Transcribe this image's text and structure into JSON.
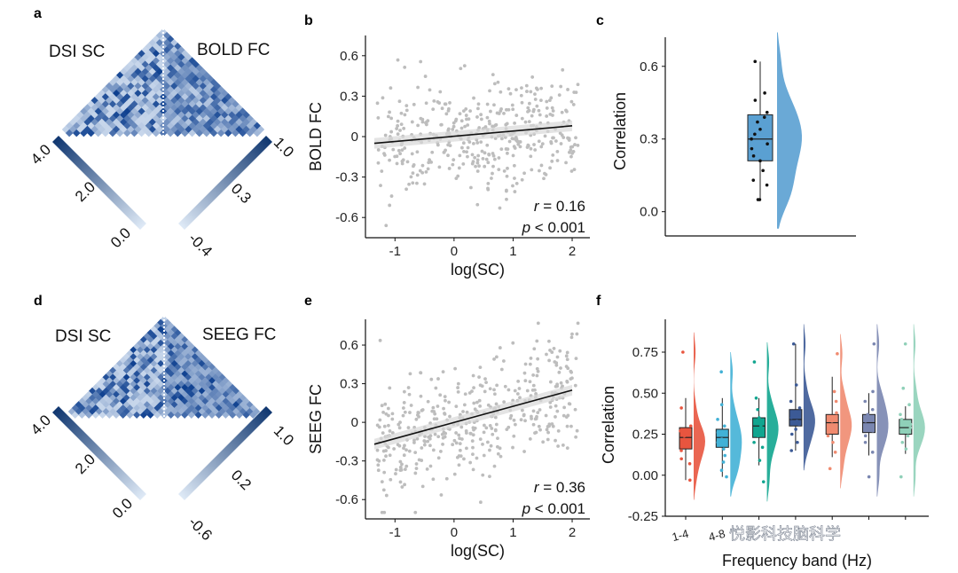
{
  "panels": {
    "a": {
      "label": "a",
      "left_title": "DSI SC",
      "right_title": "BOLD FC",
      "left_cbar": [
        "4.0",
        "2.0",
        "0.0"
      ],
      "right_cbar": [
        "1.0",
        "0.3",
        "-0.4"
      ]
    },
    "b": {
      "label": "b"
    },
    "c": {
      "label": "c"
    },
    "d": {
      "label": "d",
      "left_title": "DSI SC",
      "right_title": "SEEG FC",
      "left_cbar": [
        "4.0",
        "2.0",
        "0.0"
      ],
      "right_cbar": [
        "1.0",
        "0.2",
        "-0.6"
      ]
    },
    "e": {
      "label": "e"
    },
    "f": {
      "label": "f"
    }
  },
  "colors": {
    "matrix_dark": "#0d3f8f",
    "matrix_light": "#e8f1fb",
    "scatter_point": "#bdbdbd",
    "fit_line": "#111111",
    "raincloud": "#5aa0d2",
    "bands": [
      "#e8553f",
      "#42b1d6",
      "#11a58f",
      "#3c5a96",
      "#f08b70",
      "#7a86b0",
      "#8fd0b8"
    ]
  },
  "chart_data": [
    {
      "id": "b",
      "type": "scatter",
      "xlabel": "log(SC)",
      "ylabel": "BOLD FC",
      "xlim": [
        -1.5,
        2.3
      ],
      "ylim": [
        -0.75,
        0.75
      ],
      "xticks": [
        "-1",
        "0",
        "1",
        "2"
      ],
      "xtick_values": [
        -1,
        0,
        1,
        2
      ],
      "yticks": [
        "0.6",
        "0.3",
        "0",
        "-0.3",
        "-0.6"
      ],
      "ytick_values": [
        0.6,
        0.3,
        0,
        -0.3,
        -0.6
      ],
      "fit": {
        "x": [
          -1.35,
          2.0
        ],
        "y": [
          -0.05,
          0.08
        ]
      },
      "n_points": 420,
      "x_range": [
        -1.3,
        2.1
      ],
      "noise_sd": 0.2,
      "r_label": "r",
      "r_value": " = 0.16",
      "p_label": "p",
      "p_value": " < 0.001"
    },
    {
      "id": "c",
      "type": "raincloud",
      "ylabel": "Correlation",
      "ylim": [
        -0.1,
        0.72
      ],
      "yticks": [
        "0.6",
        "0.3",
        "0.0"
      ],
      "ytick_values": [
        0.6,
        0.3,
        0.0
      ],
      "box": {
        "min": 0.05,
        "q1": 0.21,
        "median": 0.3,
        "q3": 0.4,
        "max": 0.62
      },
      "points": [
        0.62,
        0.49,
        0.46,
        0.41,
        0.39,
        0.37,
        0.34,
        0.32,
        0.3,
        0.28,
        0.26,
        0.23,
        0.21,
        0.17,
        0.13,
        0.11,
        0.05,
        0.05
      ]
    },
    {
      "id": "e",
      "type": "scatter",
      "xlabel": "log(SC)",
      "ylabel": "SEEG FC",
      "xlim": [
        -1.5,
        2.3
      ],
      "ylim": [
        -0.75,
        0.8
      ],
      "xticks": [
        "-1",
        "0",
        "1",
        "2"
      ],
      "xtick_values": [
        -1,
        0,
        1,
        2
      ],
      "yticks": [
        "0.6",
        "0.3",
        "0",
        "-0.3",
        "-0.6"
      ],
      "ytick_values": [
        0.6,
        0.3,
        0,
        -0.3,
        -0.6
      ],
      "fit": {
        "x": [
          -1.35,
          2.0
        ],
        "y": [
          -0.17,
          0.25
        ]
      },
      "n_points": 420,
      "x_range": [
        -1.3,
        2.1
      ],
      "noise_sd": 0.22,
      "r_label": "r",
      "r_value": " = 0.36",
      "p_label": "p",
      "p_value": " < 0.001"
    },
    {
      "id": "f",
      "type": "raincloud",
      "xlabel": "Frequency band (Hz)",
      "ylabel": "Correlation",
      "ylim": [
        -0.25,
        0.95
      ],
      "yticks": [
        "0.75",
        "0.50",
        "0.25",
        "0.00",
        "-0.25"
      ],
      "ytick_values": [
        0.75,
        0.5,
        0.25,
        0.0,
        -0.25
      ],
      "categories": [
        "1-4",
        "4-8",
        "",
        "",
        "",
        "",
        ""
      ],
      "series": [
        {
          "name": "1-4",
          "box": {
            "min": -0.03,
            "q1": 0.16,
            "median": 0.23,
            "q3": 0.29,
            "max": 0.47
          },
          "points": [
            0.75,
            0.41,
            0.3,
            0.27,
            0.24,
            0.22,
            0.2,
            0.18,
            0.15,
            0.1,
            0.07,
            -0.03
          ]
        },
        {
          "name": "4-8",
          "box": {
            "min": -0.01,
            "q1": 0.17,
            "median": 0.23,
            "q3": 0.28,
            "max": 0.47
          },
          "points": [
            0.63,
            0.43,
            0.34,
            0.3,
            0.26,
            0.22,
            0.2,
            0.16,
            0.12,
            0.08,
            0.03,
            -0.01
          ]
        },
        {
          "name": "",
          "box": {
            "min": 0.06,
            "q1": 0.23,
            "median": 0.3,
            "q3": 0.35,
            "max": 0.47
          },
          "points": [
            0.69,
            0.47,
            0.4,
            0.35,
            0.32,
            0.3,
            0.27,
            0.24,
            0.2,
            0.17,
            0.09,
            -0.04
          ]
        },
        {
          "name": "",
          "box": {
            "min": 0.15,
            "q1": 0.3,
            "median": 0.34,
            "q3": 0.4,
            "max": 0.8
          },
          "points": [
            0.8,
            0.55,
            0.45,
            0.41,
            0.38,
            0.35,
            0.33,
            0.31,
            0.28,
            0.25,
            0.2,
            0.15
          ]
        },
        {
          "name": "",
          "box": {
            "min": 0.11,
            "q1": 0.25,
            "median": 0.32,
            "q3": 0.37,
            "max": 0.6
          },
          "points": [
            0.74,
            0.51,
            0.45,
            0.38,
            0.35,
            0.33,
            0.3,
            0.27,
            0.24,
            0.2,
            0.14,
            0.04
          ]
        },
        {
          "name": "",
          "box": {
            "min": 0.12,
            "q1": 0.26,
            "median": 0.32,
            "q3": 0.37,
            "max": 0.5
          },
          "points": [
            0.8,
            0.51,
            0.45,
            0.4,
            0.37,
            0.33,
            0.3,
            0.27,
            0.24,
            0.2,
            0.14,
            -0.01
          ]
        },
        {
          "name": "",
          "box": {
            "min": 0.13,
            "q1": 0.25,
            "median": 0.29,
            "q3": 0.34,
            "max": 0.42
          },
          "points": [
            0.8,
            0.53,
            0.43,
            0.37,
            0.34,
            0.31,
            0.29,
            0.27,
            0.24,
            0.2,
            0.16,
            -0.01
          ]
        }
      ]
    }
  ],
  "watermark": "悦影科技脑科学"
}
